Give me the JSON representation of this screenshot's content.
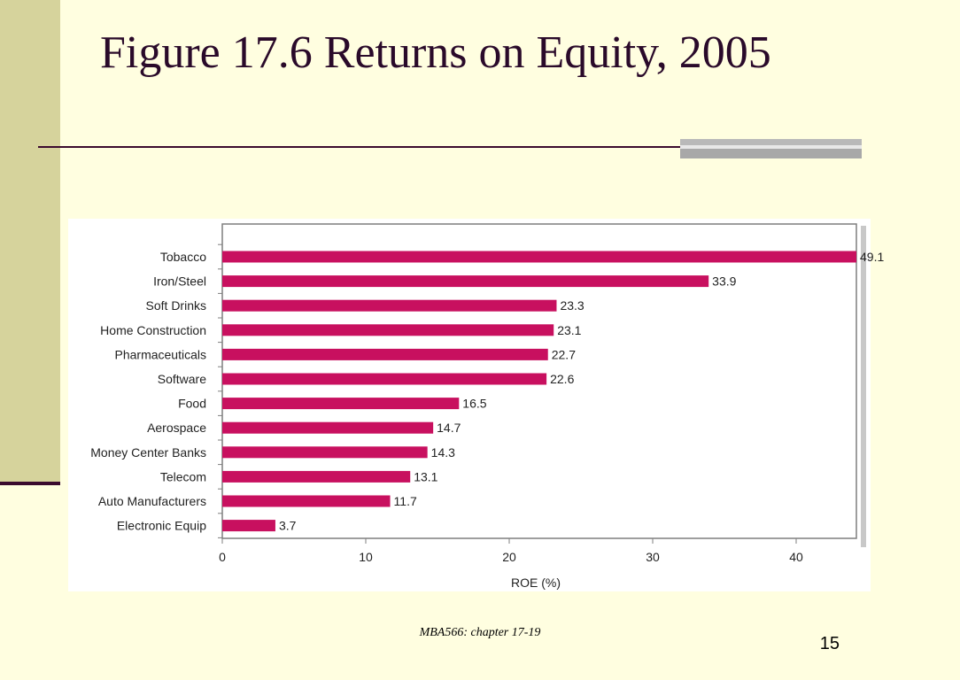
{
  "slide": {
    "title": "Figure 17.6 Returns on Equity, 2005",
    "footer": "MBA566: chapter 17-19",
    "page_number": "15"
  },
  "colors": {
    "background": "#FFFEE0",
    "left_band": "#D6D39C",
    "accent_dark": "#3B0B2E",
    "bar": "#C8105F"
  },
  "chart_data": {
    "type": "bar",
    "orientation": "horizontal",
    "categories": [
      "Tobacco",
      "Iron/Steel",
      "Soft Drinks",
      "Home Construction",
      "Pharmaceuticals",
      "Software",
      "Food",
      "Aerospace",
      "Money Center Banks",
      "Telecom",
      "Auto Manufacturers",
      "Electronic Equip"
    ],
    "values": [
      49.1,
      33.9,
      23.3,
      23.1,
      22.7,
      22.6,
      16.5,
      14.7,
      14.3,
      13.1,
      11.7,
      3.7
    ],
    "value_labels": [
      "49.1",
      "33.9",
      "23.3",
      "23.1",
      "22.7",
      "22.6",
      "16.5",
      "14.7",
      "14.3",
      "13.1",
      "11.7",
      "3.7"
    ],
    "xticks": [
      "0",
      "10",
      "20",
      "30",
      "40"
    ],
    "xlabel": "ROE (%)",
    "ylabel": "",
    "xlim": [
      0,
      44
    ],
    "grid": false
  }
}
